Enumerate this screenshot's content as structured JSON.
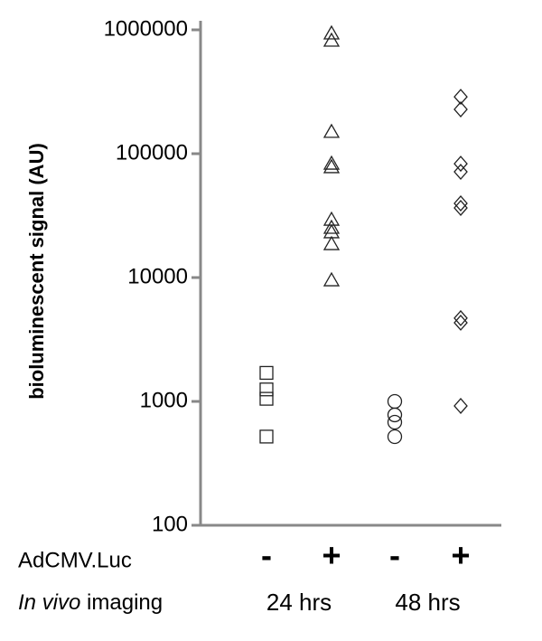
{
  "chart_data": {
    "type": "scatter",
    "y_label": "bioluminescent signal (AU)",
    "yscale": "log",
    "ylim": [
      100,
      1000000
    ],
    "yticks": [
      100,
      1000,
      10000,
      100000,
      1000000
    ],
    "categories": [
      "-",
      "+",
      "-",
      "+"
    ],
    "groups": [
      "24 hrs",
      "48 hrs"
    ],
    "row_labels": {
      "treatment": "AdCMV.Luc",
      "imaging": [
        "In vivo",
        "imaging"
      ]
    },
    "color": "#222222",
    "axis_color": "#888888",
    "series": [
      {
        "marker": "square",
        "values": [
          1700,
          1250,
          1050,
          520
        ]
      },
      {
        "marker": "triangle",
        "values": [
          935000,
          817000,
          150000,
          83000,
          77800,
          29300,
          25200,
          23200,
          18600,
          9500
        ]
      },
      {
        "marker": "circle",
        "values": [
          1000,
          778,
          679,
          519
        ]
      },
      {
        "marker": "diamond",
        "values": [
          288000,
          228000,
          83000,
          71400,
          39700,
          36500,
          4700,
          4320,
          920
        ]
      }
    ]
  }
}
